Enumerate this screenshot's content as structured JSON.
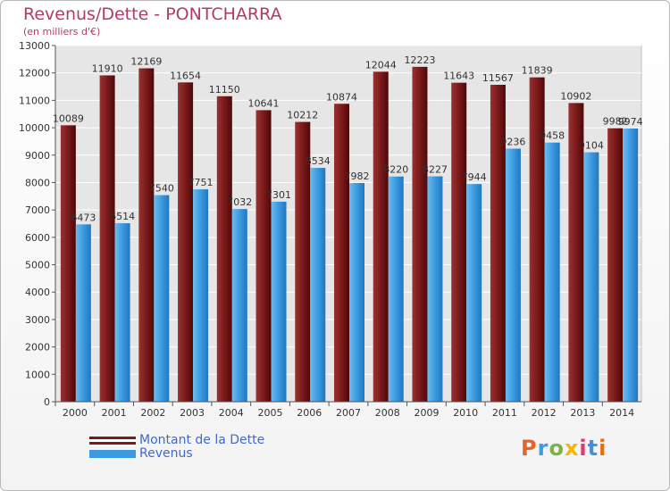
{
  "title": "Revenus/Dette - PONTCHARRA",
  "subtitle": "(en milliers d'€)",
  "logo": {
    "text": "Proxiti",
    "colors": [
      "#e8632a",
      "#3d9de0",
      "#7cb342",
      "#f2b705",
      "#d83b7a",
      "#4a90d9",
      "#ef6c00"
    ]
  },
  "colors": {
    "dette": "#7a1a1a",
    "revenus": "#3a9ae0",
    "title": "#b23a6a",
    "legend_text": "#4169c8"
  },
  "chart_data": {
    "type": "bar",
    "title": "Revenus/Dette - PONTCHARRA",
    "subtitle": "(en milliers d'€)",
    "categories": [
      "2000",
      "2001",
      "2002",
      "2003",
      "2004",
      "2005",
      "2006",
      "2007",
      "2008",
      "2009",
      "2010",
      "2011",
      "2012",
      "2013",
      "2014"
    ],
    "series": [
      {
        "name": "Montant de la Dette",
        "values": [
          10089,
          11910,
          12169,
          11654,
          11150,
          10641,
          10212,
          10874,
          12044,
          12223,
          11643,
          11567,
          11839,
          10902,
          9982
        ]
      },
      {
        "name": "Revenus",
        "values": [
          6473,
          6514,
          7540,
          7751,
          7032,
          7301,
          8534,
          7982,
          8220,
          8227,
          7944,
          9236,
          9458,
          9104,
          9974
        ]
      }
    ],
    "ylim": [
      0,
      13000
    ],
    "yticks": [
      0,
      1000,
      2000,
      3000,
      4000,
      5000,
      6000,
      7000,
      8000,
      9000,
      10000,
      11000,
      12000,
      13000
    ],
    "grid": true,
    "legend_position": "bottom-left"
  }
}
